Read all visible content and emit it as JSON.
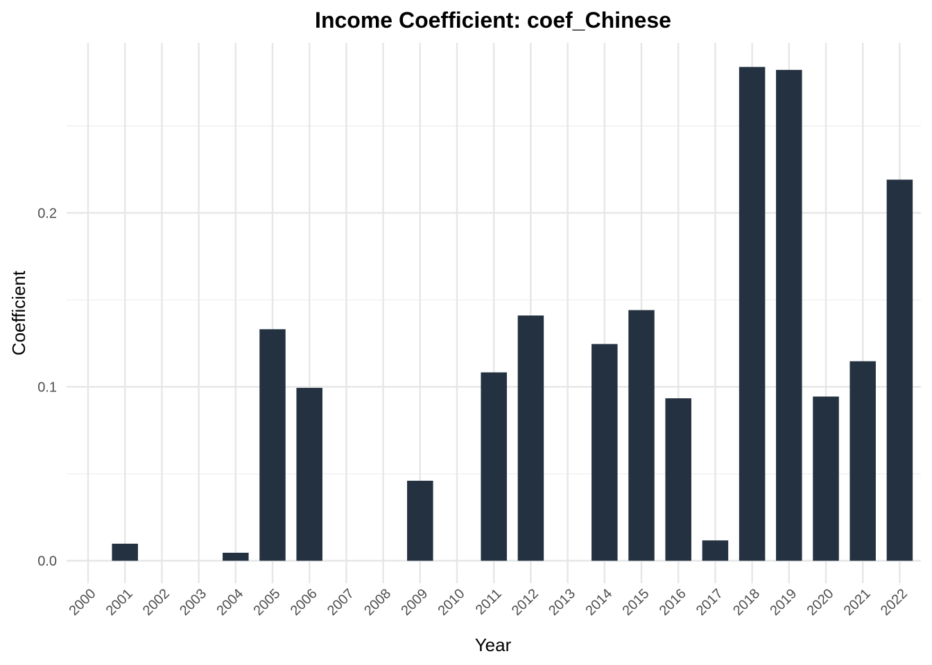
{
  "chart_data": {
    "type": "bar",
    "title": "Income Coefficient: coef_Chinese",
    "xlabel": "Year",
    "ylabel": "Coefficient",
    "categories": [
      "2000",
      "2001",
      "2002",
      "2003",
      "2004",
      "2005",
      "2006",
      "2007",
      "2008",
      "2009",
      "2010",
      "2011",
      "2012",
      "2013",
      "2014",
      "2015",
      "2016",
      "2017",
      "2018",
      "2019",
      "2020",
      "2021",
      "2022"
    ],
    "values": [
      0,
      0.0098,
      0,
      0,
      0.0046,
      0.1331,
      0.0994,
      0,
      0,
      0.046,
      0,
      0.1083,
      0.141,
      0,
      0.1246,
      0.1441,
      0.0934,
      0.0117,
      0.2839,
      0.2822,
      0.0944,
      0.1147,
      0.2191
    ],
    "y_ticks": [
      "0.0",
      "0.1",
      "0.2"
    ],
    "ylim": [
      -0.012,
      0.3
    ],
    "grid": true,
    "bar_color": "#233140",
    "legend": "none"
  }
}
